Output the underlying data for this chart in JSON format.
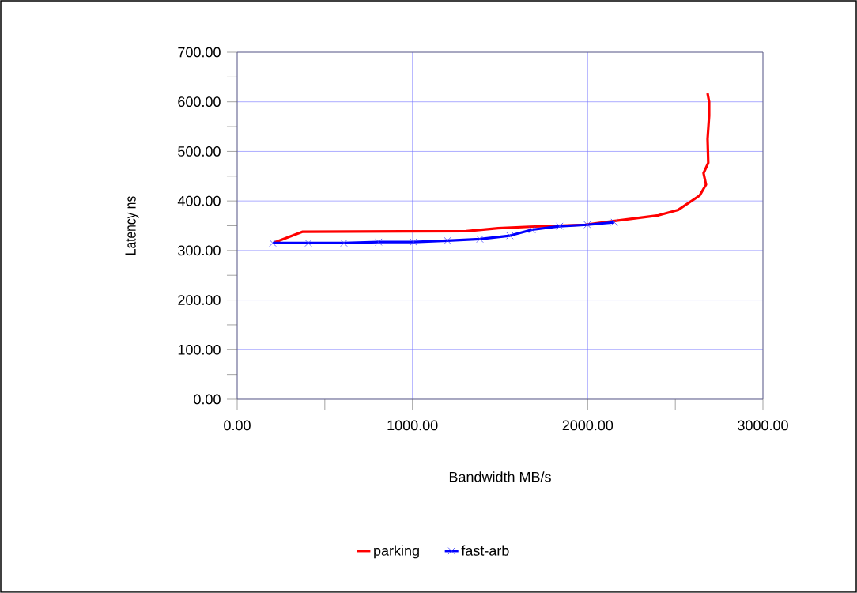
{
  "chart_data": {
    "type": "line",
    "xlabel": "Bandwidth MB/s",
    "ylabel": "Latency ns",
    "xlim": [
      0,
      3000
    ],
    "ylim": [
      0,
      700
    ],
    "xticks": [
      {
        "value": 0,
        "label": "0.00"
      },
      {
        "value": 500,
        "label": null
      },
      {
        "value": 1000,
        "label": "1000.00"
      },
      {
        "value": 1500,
        "label": null
      },
      {
        "value": 2000,
        "label": "2000.00"
      },
      {
        "value": 2500,
        "label": null
      },
      {
        "value": 3000,
        "label": "3000.00"
      }
    ],
    "yticks": [
      {
        "value": 0,
        "label": "0.00"
      },
      {
        "value": 50,
        "label": null
      },
      {
        "value": 100,
        "label": "100.00"
      },
      {
        "value": 150,
        "label": null
      },
      {
        "value": 200,
        "label": "200.00"
      },
      {
        "value": 250,
        "label": null
      },
      {
        "value": 300,
        "label": "300.00"
      },
      {
        "value": 350,
        "label": null
      },
      {
        "value": 400,
        "label": "400.00"
      },
      {
        "value": 450,
        "label": null
      },
      {
        "value": 500,
        "label": "500.00"
      },
      {
        "value": 550,
        "label": null
      },
      {
        "value": 600,
        "label": "600.00"
      },
      {
        "value": 650,
        "label": null
      },
      {
        "value": 700,
        "label": "700.00"
      }
    ],
    "grid": true,
    "legend": "bottom",
    "series": [
      {
        "name": "parking",
        "color": "#ff0000",
        "marker": "none",
        "x": [
          212,
          374,
          1308,
          1489,
          1669,
          1985,
          2404,
          2517,
          2639,
          2675,
          2661,
          2688,
          2684,
          2693,
          2693,
          2684
        ],
        "values": [
          316,
          338,
          339,
          345,
          348,
          352,
          371,
          382,
          411,
          433,
          456,
          477,
          525,
          572,
          600,
          617
        ]
      },
      {
        "name": "fast-arb",
        "color": "#0000ff",
        "marker": "cross",
        "x": [
          203,
          406,
          609,
          807,
          1006,
          1200,
          1385,
          1556,
          1683,
          1840,
          1998,
          2152
        ],
        "values": [
          315,
          315,
          315,
          317,
          317,
          320,
          323,
          330,
          342,
          349,
          352,
          357
        ]
      }
    ]
  }
}
